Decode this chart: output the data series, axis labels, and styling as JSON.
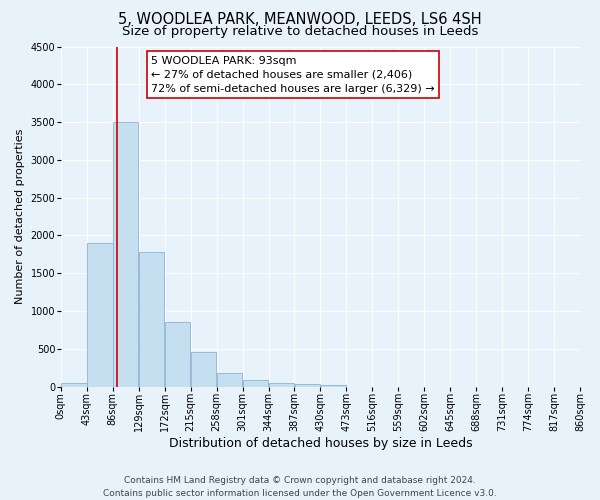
{
  "title": "5, WOODLEA PARK, MEANWOOD, LEEDS, LS6 4SH",
  "subtitle": "Size of property relative to detached houses in Leeds",
  "xlabel": "Distribution of detached houses by size in Leeds",
  "ylabel": "Number of detached properties",
  "bin_edges": [
    0,
    43,
    86,
    129,
    172,
    215,
    258,
    301,
    344,
    387,
    430,
    473,
    516,
    559,
    602,
    645,
    688,
    731,
    774,
    817,
    860
  ],
  "bar_values": [
    50,
    1900,
    3500,
    1780,
    850,
    460,
    185,
    90,
    50,
    30,
    20,
    0,
    0,
    0,
    0,
    0,
    0,
    0,
    0,
    0
  ],
  "bar_color": "#c5dff0",
  "bar_edgecolor": "#8ab4d4",
  "property_line_x": 93,
  "property_line_color": "#cc0000",
  "annotation_title": "5 WOODLEA PARK: 93sqm",
  "annotation_line1": "← 27% of detached houses are smaller (2,406)",
  "annotation_line2": "72% of semi-detached houses are larger (6,329) →",
  "annotation_box_facecolor": "#ffffff",
  "annotation_box_edgecolor": "#cc0000",
  "ylim": [
    0,
    4500
  ],
  "yticks": [
    0,
    500,
    1000,
    1500,
    2000,
    2500,
    3000,
    3500,
    4000,
    4500
  ],
  "footer1": "Contains HM Land Registry data © Crown copyright and database right 2024.",
  "footer2": "Contains public sector information licensed under the Open Government Licence v3.0.",
  "bg_color": "#e8f2fb",
  "plot_bg_color": "#e8f2fb",
  "grid_color": "#ffffff",
  "title_fontsize": 10.5,
  "subtitle_fontsize": 9.5,
  "xlabel_fontsize": 9,
  "ylabel_fontsize": 8,
  "tick_fontsize": 7,
  "annotation_fontsize": 8,
  "footer_fontsize": 6.5
}
